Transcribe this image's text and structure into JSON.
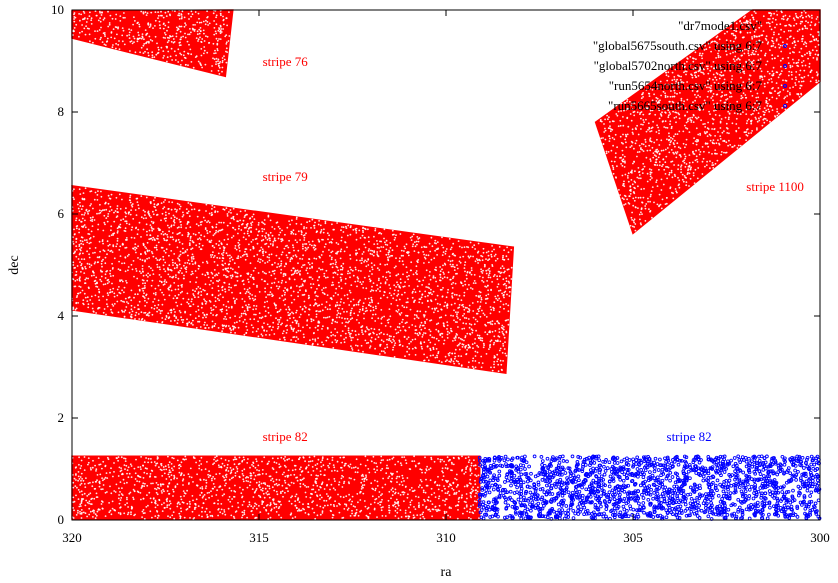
{
  "chart_data": {
    "type": "scatter",
    "xlabel": "ra",
    "ylabel": "dec",
    "xlim": [
      320,
      300
    ],
    "ylim": [
      0,
      10
    ],
    "x_ticks": [
      320,
      315,
      310,
      305,
      300
    ],
    "y_ticks": [
      0,
      2,
      4,
      6,
      8,
      10
    ],
    "grid": false,
    "legend_position": "top-right",
    "legend": [
      {
        "label": "\"dr7mode1.csv\"",
        "color": "#ff0000"
      },
      {
        "label": "\"global5675south.csv\" using 6:7",
        "color": "#0000ff"
      },
      {
        "label": "\"global5702north.csv\" using 6:7",
        "color": "#0000ff"
      },
      {
        "label": "\"run5654north.csv\" using 6:7",
        "color": "#0000ff"
      },
      {
        "label": "\"run5665south.csv\" using 6:7",
        "color": "#0000ff"
      }
    ],
    "regions": [
      {
        "series": "\"dr7mode1.csv\"",
        "color": "#ff0000",
        "density": 1.0,
        "polygon": [
          [
            320,
            9.98
          ],
          [
            315.7,
            10.0
          ],
          [
            315.9,
            8.7
          ],
          [
            320,
            9.45
          ]
        ]
      },
      {
        "series": "\"dr7mode1.csv\"",
        "color": "#ff0000",
        "density": 1.0,
        "polygon": [
          [
            320,
            6.55
          ],
          [
            308.2,
            5.35
          ],
          [
            308.4,
            2.88
          ],
          [
            320,
            4.12
          ]
        ]
      },
      {
        "series": "\"dr7mode1.csv\"",
        "color": "#ff0000",
        "density": 1.0,
        "polygon": [
          [
            306.0,
            7.8
          ],
          [
            301.8,
            10.0
          ],
          [
            300,
            10.0
          ],
          [
            300,
            8.6
          ],
          [
            305.0,
            5.62
          ]
        ]
      },
      {
        "series": "\"dr7mode1.csv\"",
        "color": "#ff0000",
        "density": 1.0,
        "polygon": [
          [
            320,
            1.25
          ],
          [
            309.1,
            1.25
          ],
          [
            309.1,
            0.02
          ],
          [
            320,
            0.02
          ]
        ]
      },
      {
        "series": "\"global5675south.csv\" using 6:7",
        "color": "#0000ff",
        "density": 0.32,
        "polygon": [
          [
            309.1,
            1.25
          ],
          [
            300,
            1.25
          ],
          [
            300,
            0.02
          ],
          [
            309.1,
            0.02
          ]
        ]
      }
    ],
    "annotations": [
      {
        "text": "stripe 76",
        "x": 314.3,
        "y": 8.9,
        "color": "#ff0000"
      },
      {
        "text": "stripe 79",
        "x": 314.3,
        "y": 6.65,
        "color": "#ff0000"
      },
      {
        "text": "stripe 1100",
        "x": 301.2,
        "y": 6.45,
        "color": "#ff0000"
      },
      {
        "text": "stripe 82",
        "x": 314.3,
        "y": 1.55,
        "color": "#ff0000"
      },
      {
        "text": "stripe 82",
        "x": 303.5,
        "y": 1.55,
        "color": "#0000ff"
      }
    ]
  }
}
